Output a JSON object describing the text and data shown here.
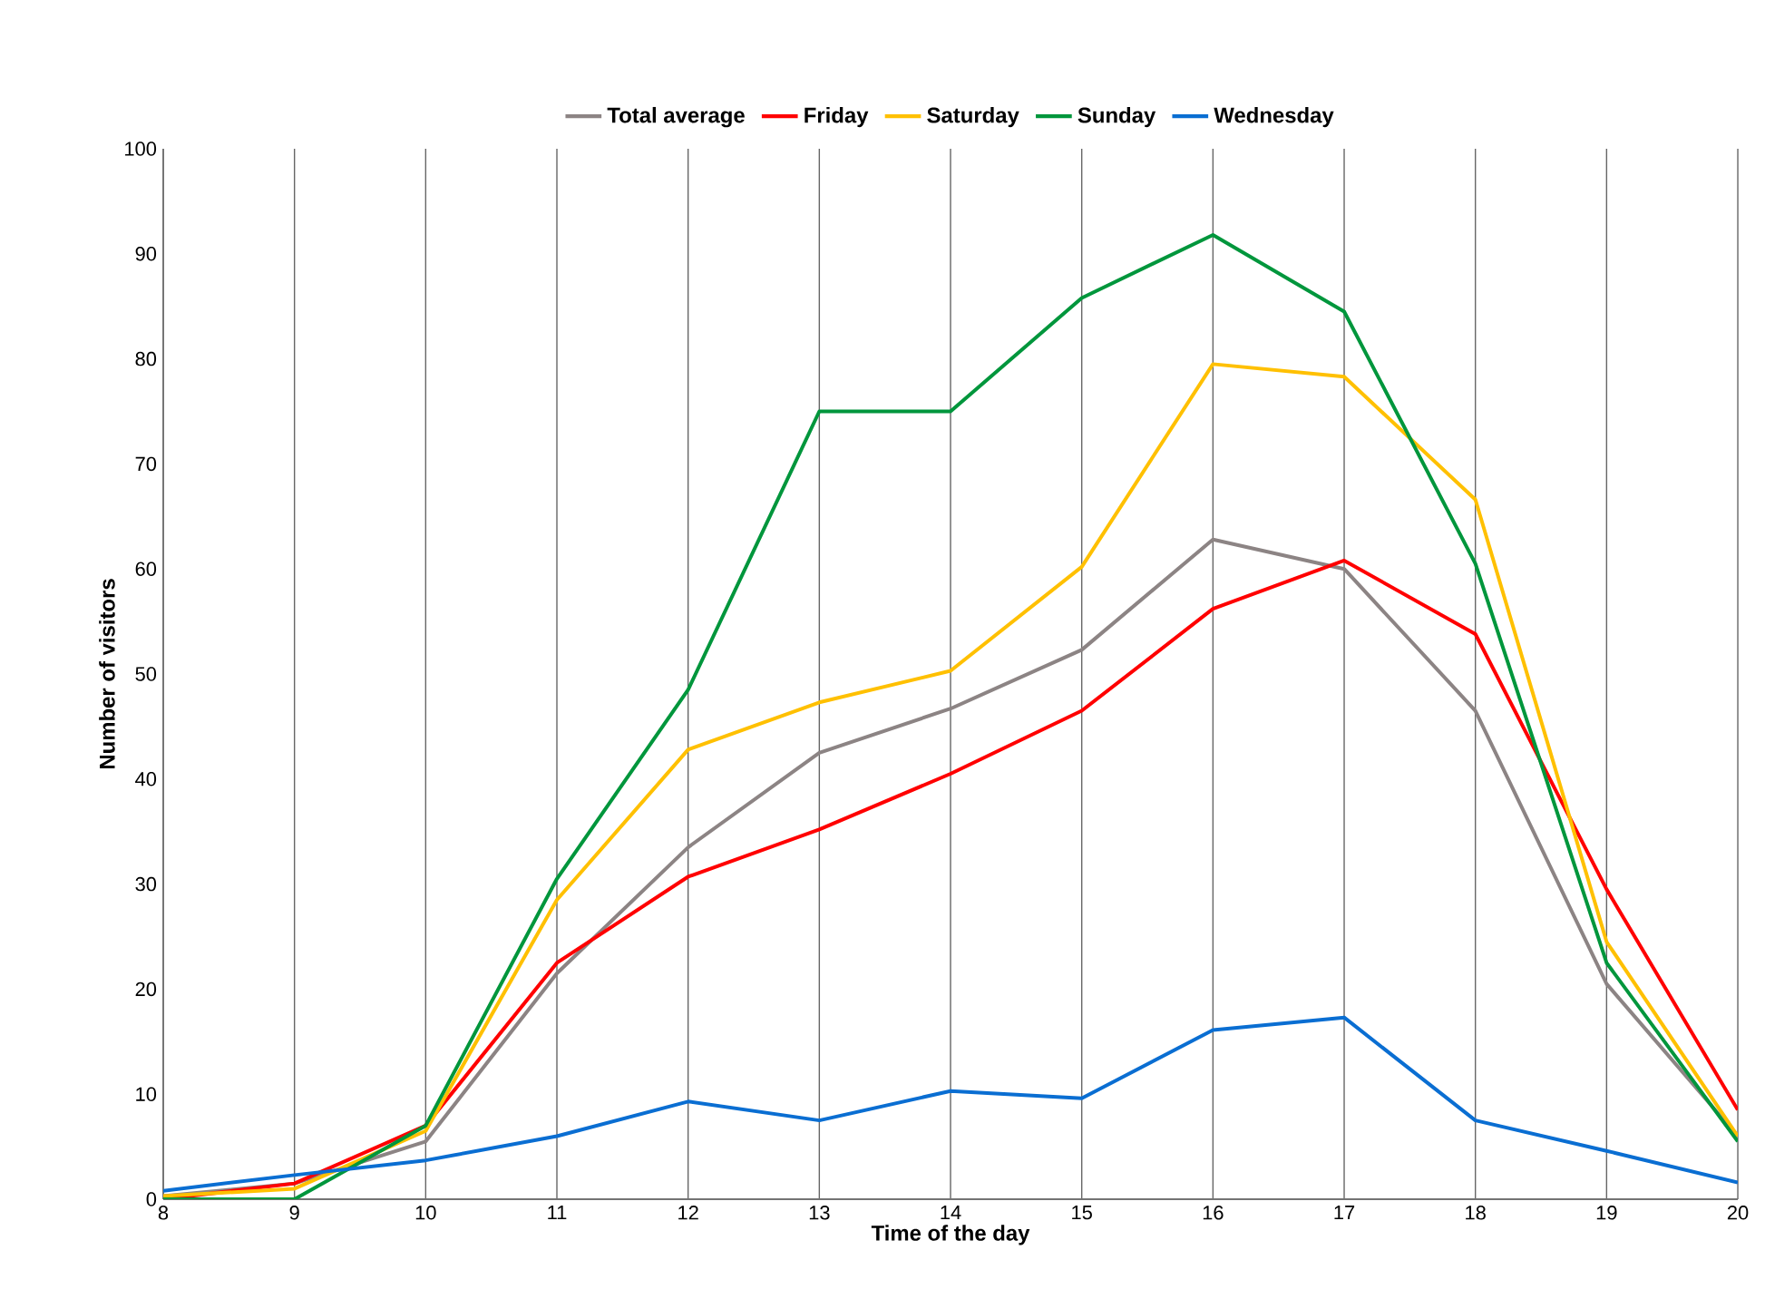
{
  "chart_data": {
    "type": "line",
    "xlabel": "Time of the day",
    "ylabel": "Number of visitors",
    "x": [
      8,
      9,
      10,
      11,
      12,
      13,
      14,
      15,
      16,
      17,
      18,
      19,
      20
    ],
    "series": [
      {
        "name": "Total average",
        "color": "#8c8484",
        "values": [
          0.3,
          1.5,
          5.5,
          21.5,
          33.5,
          42.5,
          46.7,
          52.3,
          62.8,
          60,
          46.5,
          20.5,
          6
        ]
      },
      {
        "name": "Friday",
        "color": "#ff0000",
        "values": [
          0,
          1.5,
          7,
          22.5,
          30.7,
          35.2,
          40.5,
          46.5,
          56.2,
          60.8,
          53.8,
          29.5,
          8.5
        ]
      },
      {
        "name": "Saturday",
        "color": "#ffc000",
        "values": [
          0.3,
          1,
          6.5,
          28.5,
          42.8,
          47.3,
          50.3,
          60.2,
          79.5,
          78.3,
          66.6,
          24.5,
          6
        ]
      },
      {
        "name": "Sunday",
        "color": "#00963c",
        "values": [
          0,
          0,
          7,
          30.5,
          48.5,
          75,
          75,
          85.8,
          91.8,
          84.5,
          60.5,
          22.5,
          5.5
        ]
      },
      {
        "name": "Wednesday",
        "color": "#0a6ed2",
        "values": [
          0.8,
          2.3,
          3.7,
          6,
          9.3,
          7.5,
          10.3,
          9.6,
          16.1,
          17.3,
          7.5,
          4.6,
          1.6
        ]
      }
    ],
    "xlim": [
      8,
      20
    ],
    "xticks": [
      8,
      9,
      10,
      11,
      12,
      13,
      14,
      15,
      16,
      17,
      18,
      19,
      20
    ],
    "ylim": [
      0,
      100
    ],
    "yticks": [
      0,
      10,
      20,
      30,
      40,
      50,
      60,
      70,
      80,
      90,
      100
    ],
    "grid": "x",
    "legend": "top",
    "marker": "none",
    "line_style": "solid"
  }
}
